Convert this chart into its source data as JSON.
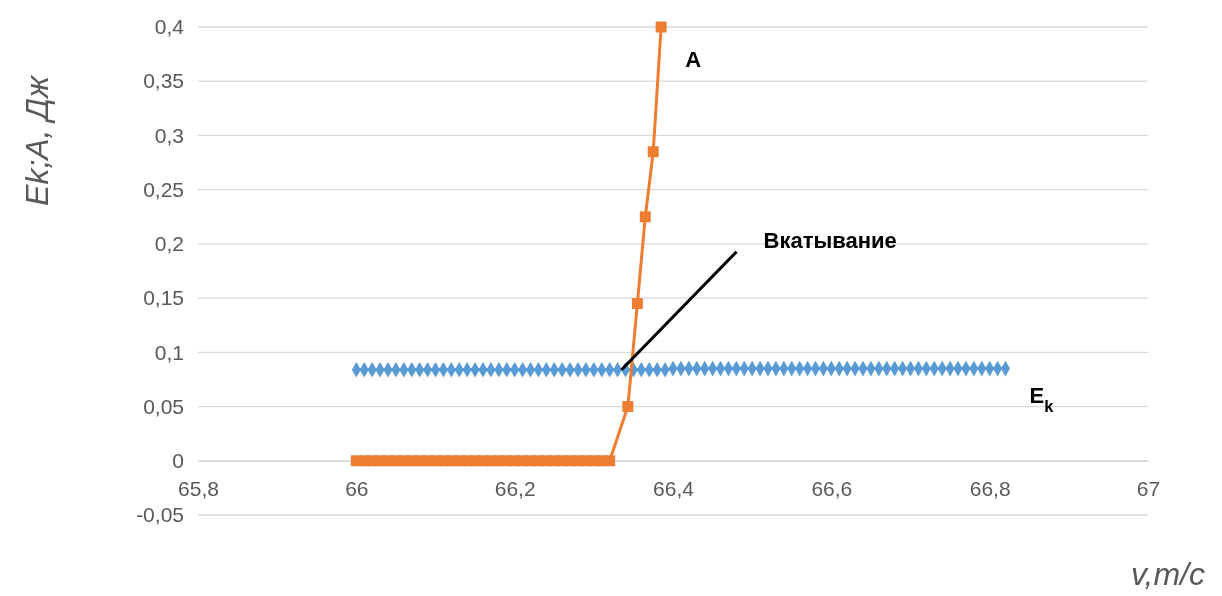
{
  "chart_data": {
    "type": "line",
    "xlabel": "v,m/c",
    "ylabel": "Ek;A, Дж",
    "xlim": [
      65.8,
      67
    ],
    "ylim": [
      -0.05,
      0.4
    ],
    "xticks": [
      {
        "value": 65.8,
        "label": "65,8"
      },
      66,
      {
        "value": 66.2,
        "label": "66,2"
      },
      {
        "value": 66.4,
        "label": "66,4"
      },
      {
        "value": 66.6,
        "label": "66,6"
      },
      {
        "value": 66.8,
        "label": "66,8"
      },
      67
    ],
    "yticks": [
      {
        "value": -0.05,
        "label": "-0,05"
      },
      0,
      {
        "value": 0.05,
        "label": "0,05"
      },
      {
        "value": 0.1,
        "label": "0,1"
      },
      {
        "value": 0.15,
        "label": "0,15"
      },
      {
        "value": 0.2,
        "label": "0,2"
      },
      {
        "value": 0.25,
        "label": "0,25"
      },
      {
        "value": 0.3,
        "label": "0,3"
      },
      {
        "value": 0.35,
        "label": "0,35"
      },
      {
        "value": 0.4,
        "label": "0,4"
      }
    ],
    "grid": "y",
    "series": [
      {
        "name": "E$_{k}$",
        "color": "#5b9bd5",
        "marker": "diamond",
        "x": [
          66,
          66.01,
          66.02,
          66.03,
          66.04,
          66.05,
          66.06,
          66.07,
          66.08,
          66.09,
          66.1,
          66.11,
          66.12,
          66.13,
          66.14,
          66.15,
          66.16,
          66.17,
          66.18,
          66.19,
          66.2,
          66.21,
          66.22,
          66.23,
          66.24,
          66.25,
          66.26,
          66.27,
          66.28,
          66.29,
          66.3,
          66.31,
          66.32,
          66.33,
          66.34,
          66.35,
          66.36,
          66.37,
          66.38,
          66.39,
          66.4,
          66.41,
          66.42,
          66.43,
          66.44,
          66.45,
          66.46,
          66.47,
          66.48,
          66.49,
          66.5,
          66.51,
          66.52,
          66.53,
          66.54,
          66.55,
          66.56,
          66.57,
          66.58,
          66.59,
          66.6,
          66.61,
          66.62,
          66.63,
          66.64,
          66.65,
          66.66,
          66.67,
          66.68,
          66.69,
          66.7,
          66.71,
          66.72,
          66.73,
          66.74,
          66.75,
          66.76,
          66.77,
          66.78,
          66.79,
          66.8,
          66.81,
          66.82
        ],
        "values": [
          0.084,
          0.084,
          0.084,
          0.084,
          0.084,
          0.084,
          0.084,
          0.084,
          0.084,
          0.084,
          0.084,
          0.084,
          0.084,
          0.084,
          0.084,
          0.084,
          0.084,
          0.084,
          0.084,
          0.084,
          0.084,
          0.084,
          0.084,
          0.084,
          0.084,
          0.084,
          0.084,
          0.084,
          0.084,
          0.084,
          0.084,
          0.084,
          0.084,
          0.084,
          0.084,
          0.084,
          0.084,
          0.084,
          0.084,
          0.084,
          0.085,
          0.085,
          0.085,
          0.085,
          0.085,
          0.085,
          0.085,
          0.085,
          0.085,
          0.085,
          0.085,
          0.085,
          0.085,
          0.085,
          0.085,
          0.085,
          0.085,
          0.085,
          0.085,
          0.085,
          0.085,
          0.085,
          0.085,
          0.085,
          0.085,
          0.085,
          0.085,
          0.085,
          0.085,
          0.085,
          0.085,
          0.085,
          0.085,
          0.085,
          0.085,
          0.085,
          0.085,
          0.085,
          0.085,
          0.085,
          0.085,
          0.085,
          0.085
        ]
      },
      {
        "name": "A",
        "color": "#ed7d31",
        "marker": "square",
        "x": [
          66,
          66.01,
          66.02,
          66.03,
          66.04,
          66.05,
          66.06,
          66.07,
          66.08,
          66.09,
          66.1,
          66.11,
          66.12,
          66.13,
          66.14,
          66.15,
          66.16,
          66.17,
          66.18,
          66.19,
          66.2,
          66.21,
          66.22,
          66.23,
          66.24,
          66.25,
          66.26,
          66.27,
          66.28,
          66.29,
          66.3,
          66.31,
          66.32,
          66.343,
          66.355,
          66.365,
          66.375,
          66.385
        ],
        "values": [
          0,
          0,
          0,
          0,
          0,
          0,
          0,
          0,
          0,
          0,
          0,
          0,
          0,
          0,
          0,
          0,
          0,
          0,
          0,
          0,
          0,
          0,
          0,
          0,
          0,
          0,
          0,
          0,
          0,
          0,
          0,
          0,
          0,
          0.05,
          0.145,
          0.225,
          0.285,
          0.4
        ]
      }
    ],
    "annotations": [
      {
        "text": "Вкатывание",
        "x": 66.335,
        "y": 0.084
      }
    ]
  }
}
